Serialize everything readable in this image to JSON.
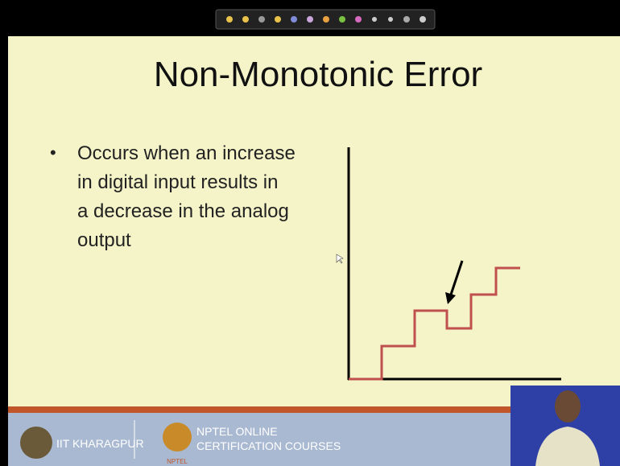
{
  "slide": {
    "title": "Non-Monotonic Error",
    "bullet_lines": [
      "Occurs when an increase",
      "in digital input results in",
      "a decrease in the analog",
      "output"
    ]
  },
  "footer": {
    "institute": "IIT KHARAGPUR",
    "nptel_line1": "NPTEL ONLINE",
    "nptel_line2": "CERTIFICATION COURSES",
    "nptel_logo_text": "NPTEL"
  }
}
